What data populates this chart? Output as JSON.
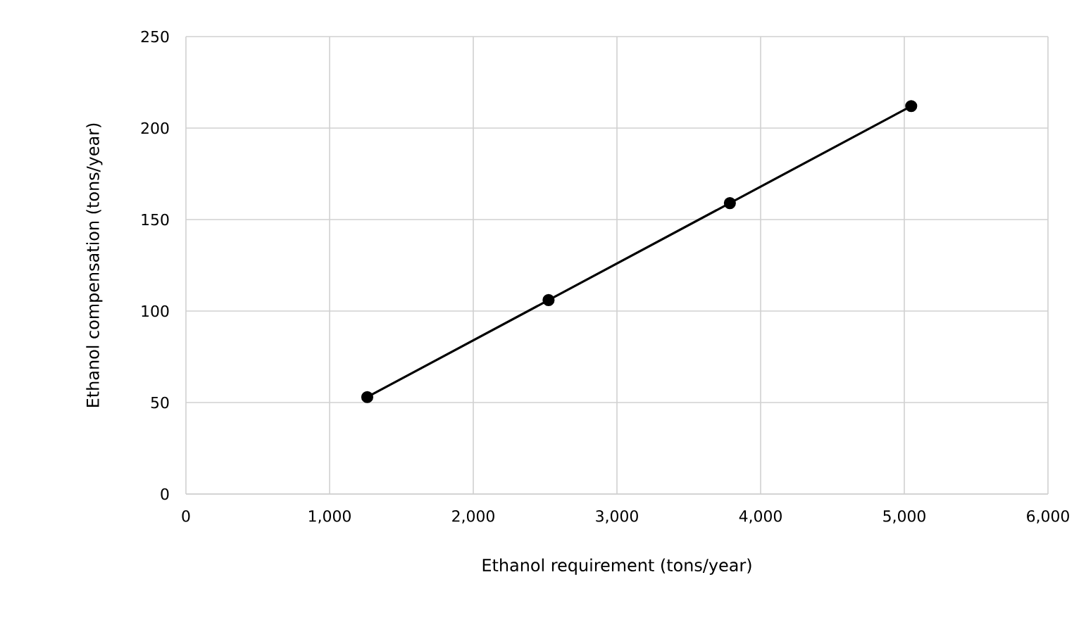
{
  "chart_data": {
    "type": "line",
    "xlabel": "Ethanol requirement (tons/year)",
    "ylabel": "Ethanol compensation (tons/year)",
    "x": [
      1262,
      2524,
      3786,
      5048
    ],
    "series": [
      {
        "color": "#000000",
        "values": [
          53,
          106,
          159,
          212
        ]
      }
    ],
    "xlim": [
      0,
      6000
    ],
    "ylim": [
      0,
      250
    ],
    "xticks": [
      {
        "value": 0,
        "label": "0"
      },
      {
        "value": 1000,
        "label": "1,000"
      },
      {
        "value": 2000,
        "label": "2,000"
      },
      {
        "value": 3000,
        "label": "3,000"
      },
      {
        "value": 4000,
        "label": "4,000"
      },
      {
        "value": 5000,
        "label": "5,000"
      },
      {
        "value": 6000,
        "label": "6,000"
      }
    ],
    "yticks": [
      0,
      50,
      100,
      150,
      200,
      250
    ],
    "grid": true,
    "marker": "circle",
    "line_style": "solid"
  }
}
